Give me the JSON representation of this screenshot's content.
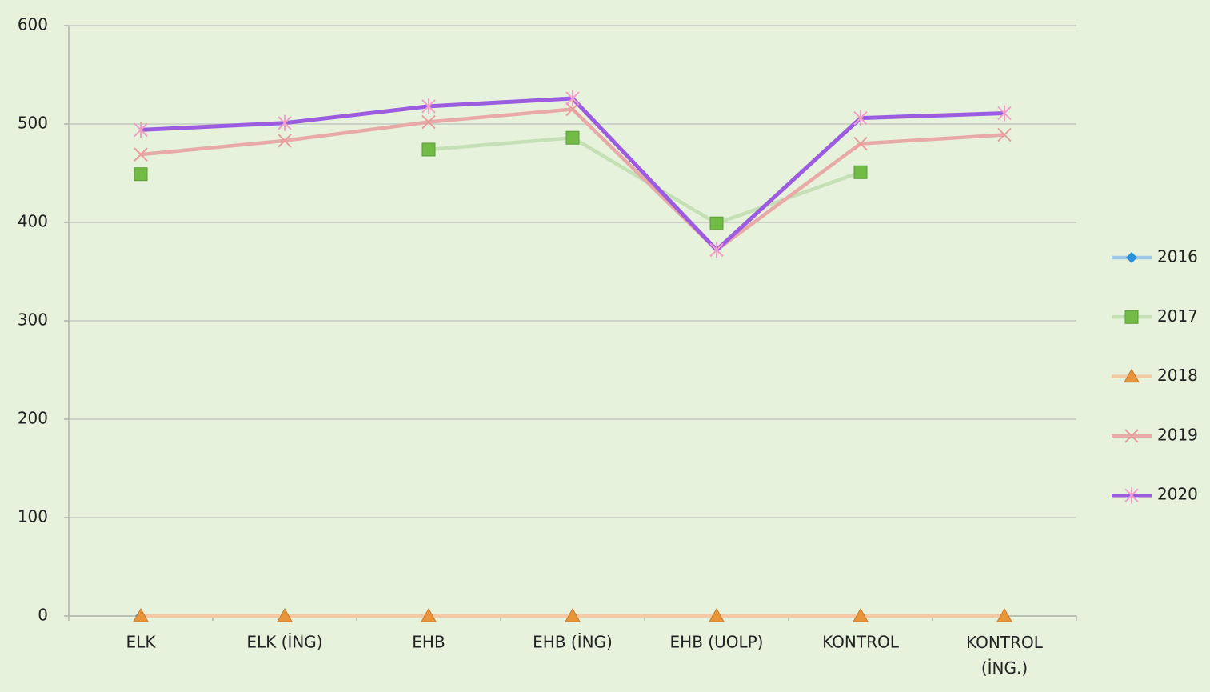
{
  "chart_data": {
    "type": "line",
    "categories": [
      "ELK",
      "ELK (İNG)",
      "EHB",
      "EHB (İNG)",
      "EHB (UOLP)",
      "KONTROL",
      "KONTROL (İNG.)"
    ],
    "series": [
      {
        "name": "2016",
        "color": "#9dc8ea",
        "marker_color": "#2b8fd9",
        "marker": "diamond",
        "values": [
          0,
          null,
          0,
          0,
          0,
          0,
          null
        ]
      },
      {
        "name": "2017",
        "color": "#c6e0b6",
        "marker_color": "#72bb46",
        "marker": "square",
        "values": [
          449,
          null,
          474,
          486,
          399,
          451,
          null
        ]
      },
      {
        "name": "2018",
        "color": "#f4c9a6",
        "marker_color": "#e8953a",
        "marker": "triangle",
        "values": [
          0,
          0,
          0,
          0,
          0,
          0,
          0
        ]
      },
      {
        "name": "2019",
        "color": "#e8aaa6",
        "marker_color": "#e89c9c",
        "marker": "x",
        "values": [
          469,
          483,
          502,
          515,
          372,
          480,
          489
        ]
      },
      {
        "name": "2020",
        "color": "#9b5ce0",
        "marker_color": "#f0a0c8",
        "marker": "star",
        "values": [
          494,
          501,
          518,
          526,
          372,
          506,
          511
        ]
      }
    ],
    "ylim": [
      0,
      600
    ],
    "yticks": [
      0,
      100,
      200,
      300,
      400,
      500,
      600
    ],
    "grid": true,
    "legend": "right"
  }
}
